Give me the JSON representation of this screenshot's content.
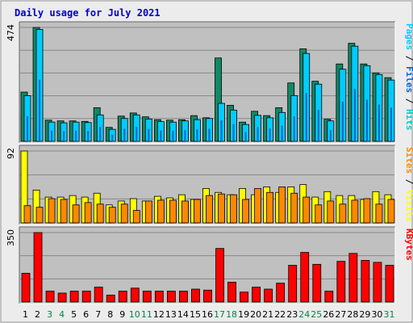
{
  "title": "Daily usage for July 2021",
  "colors": {
    "background": "#ececec",
    "plot": "#c0c0c0",
    "title": "#0000cc",
    "hits": "#00cccc",
    "files": "#0066cc",
    "pages": "#00ccff",
    "pages_back": "#118866",
    "visits": "#ffff00",
    "visits_back": "#cccc00",
    "sites": "#ff8800",
    "kbytes": "#ff0000",
    "weekend_day": "#008844",
    "weekday": "#000000"
  },
  "chart_data": [
    {
      "type": "bar",
      "name": "hits-files-pages",
      "axis_max_label": "474",
      "ylim": [
        0,
        474
      ],
      "legend": [
        {
          "label": "Pages",
          "color": "#00ccff"
        },
        {
          "label": " / ",
          "color": "#000000"
        },
        {
          "label": "Files",
          "color": "#0066cc"
        },
        {
          "label": " / ",
          "color": "#000000"
        },
        {
          "label": "Hits",
          "color": "#00cccc"
        }
      ],
      "series": [
        {
          "name": "Hits",
          "values": [
            205,
            474,
            88,
            85,
            85,
            83,
            140,
            58,
            105,
            118,
            102,
            90,
            88,
            90,
            107,
            98,
            347,
            150,
            80,
            125,
            107,
            140,
            243,
            385,
            250,
            92,
            322,
            408,
            322,
            285,
            265
          ]
        },
        {
          "name": "Pages",
          "values": [
            190,
            466,
            80,
            77,
            80,
            78,
            110,
            50,
            95,
            110,
            93,
            82,
            80,
            85,
            90,
            95,
            158,
            130,
            70,
            108,
            98,
            120,
            190,
            366,
            238,
            85,
            300,
            396,
            315,
            278,
            255
          ]
        }
      ],
      "x": [
        1,
        2,
        3,
        4,
        5,
        6,
        7,
        8,
        9,
        10,
        11,
        12,
        13,
        14,
        15,
        16,
        17,
        18,
        19,
        20,
        21,
        22,
        23,
        24,
        25,
        26,
        27,
        28,
        29,
        30,
        31
      ]
    },
    {
      "type": "bar",
      "name": "visits-sites",
      "axis_max_label": "92",
      "ylim": [
        0,
        92
      ],
      "legend": [
        {
          "label": "Sites",
          "color": "#ff8800"
        },
        {
          "label": " / ",
          "color": "#000000"
        },
        {
          "label": "Visits",
          "color": "#ffff00"
        }
      ],
      "series": [
        {
          "name": "Visits",
          "values": [
            92,
            42,
            33,
            33,
            35,
            33,
            38,
            23,
            28,
            31,
            28,
            34,
            32,
            36,
            30,
            44,
            39,
            36,
            44,
            36,
            46,
            39,
            46,
            49,
            33,
            40,
            35,
            35,
            30,
            40,
            36
          ]
        },
        {
          "name": "Sites",
          "values": [
            22,
            20,
            31,
            30,
            23,
            26,
            24,
            20,
            24,
            16,
            28,
            29,
            29,
            28,
            30,
            35,
            37,
            36,
            30,
            44,
            39,
            46,
            38,
            33,
            23,
            28,
            24,
            29,
            31,
            24,
            30
          ]
        }
      ],
      "x": [
        1,
        2,
        3,
        4,
        5,
        6,
        7,
        8,
        9,
        10,
        11,
        12,
        13,
        14,
        15,
        16,
        17,
        18,
        19,
        20,
        21,
        22,
        23,
        24,
        25,
        26,
        27,
        28,
        29,
        30,
        31
      ]
    },
    {
      "type": "bar",
      "name": "kbytes",
      "axis_max_label": "350",
      "ylim": [
        0,
        350
      ],
      "legend": [
        {
          "label": "KBytes",
          "color": "#ff0000"
        }
      ],
      "series": [
        {
          "name": "KBytes",
          "values": [
            145,
            350,
            55,
            45,
            55,
            55,
            75,
            35,
            55,
            70,
            55,
            55,
            55,
            55,
            65,
            60,
            270,
            100,
            50,
            75,
            65,
            95,
            185,
            250,
            190,
            55,
            205,
            245,
            210,
            200,
            185
          ]
        }
      ],
      "x": [
        1,
        2,
        3,
        4,
        5,
        6,
        7,
        8,
        9,
        10,
        11,
        12,
        13,
        14,
        15,
        16,
        17,
        18,
        19,
        20,
        21,
        22,
        23,
        24,
        25,
        26,
        27,
        28,
        29,
        30,
        31
      ]
    }
  ],
  "x_labels": [
    "1",
    "2",
    "3",
    "4",
    "5",
    "6",
    "7",
    "8",
    "9",
    "10",
    "11",
    "12",
    "13",
    "14",
    "15",
    "16",
    "17",
    "18",
    "19",
    "20",
    "21",
    "22",
    "23",
    "24",
    "25",
    "26",
    "27",
    "28",
    "29",
    "30",
    "31"
  ],
  "weekend_days": [
    3,
    4,
    10,
    11,
    17,
    18,
    24,
    25,
    31
  ]
}
